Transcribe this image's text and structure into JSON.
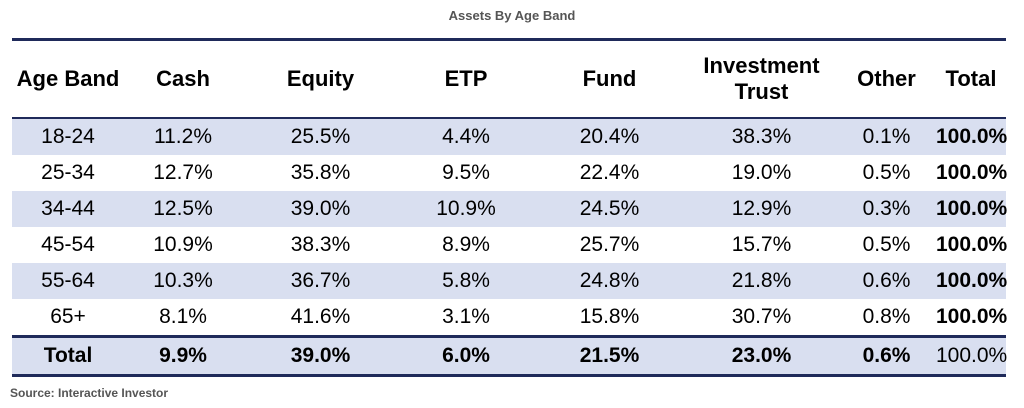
{
  "chart_data": {
    "type": "table",
    "title": "Assets By Age Band",
    "columns": [
      "Age Band",
      "Cash",
      "Equity",
      "ETP",
      "Fund",
      "Investment Trust",
      "Other",
      "Total"
    ],
    "rows": [
      [
        "18-24",
        "11.2%",
        "25.5%",
        "4.4%",
        "20.4%",
        "38.3%",
        "0.1%",
        "100.0%"
      ],
      [
        "25-34",
        "12.7%",
        "35.8%",
        "9.5%",
        "22.4%",
        "19.0%",
        "0.5%",
        "100.0%"
      ],
      [
        "34-44",
        "12.5%",
        "39.0%",
        "10.9%",
        "24.5%",
        "12.9%",
        "0.3%",
        "100.0%"
      ],
      [
        "45-54",
        "10.9%",
        "38.3%",
        "8.9%",
        "25.7%",
        "15.7%",
        "0.5%",
        "100.0%"
      ],
      [
        "55-64",
        "10.3%",
        "36.7%",
        "5.8%",
        "24.8%",
        "21.8%",
        "0.6%",
        "100.0%"
      ],
      [
        "65+",
        "8.1%",
        "41.6%",
        "3.1%",
        "15.8%",
        "30.7%",
        "0.8%",
        "100.0%"
      ]
    ],
    "total_row": [
      "Total",
      "9.9%",
      "39.0%",
      "6.0%",
      "21.5%",
      "23.0%",
      "0.6%",
      "100.0%"
    ]
  },
  "source": "Source: Interactive Investor",
  "colors": {
    "header_rule": "#1f2a5a",
    "row_shade": "#d9dff0",
    "title_text": "#555555"
  }
}
